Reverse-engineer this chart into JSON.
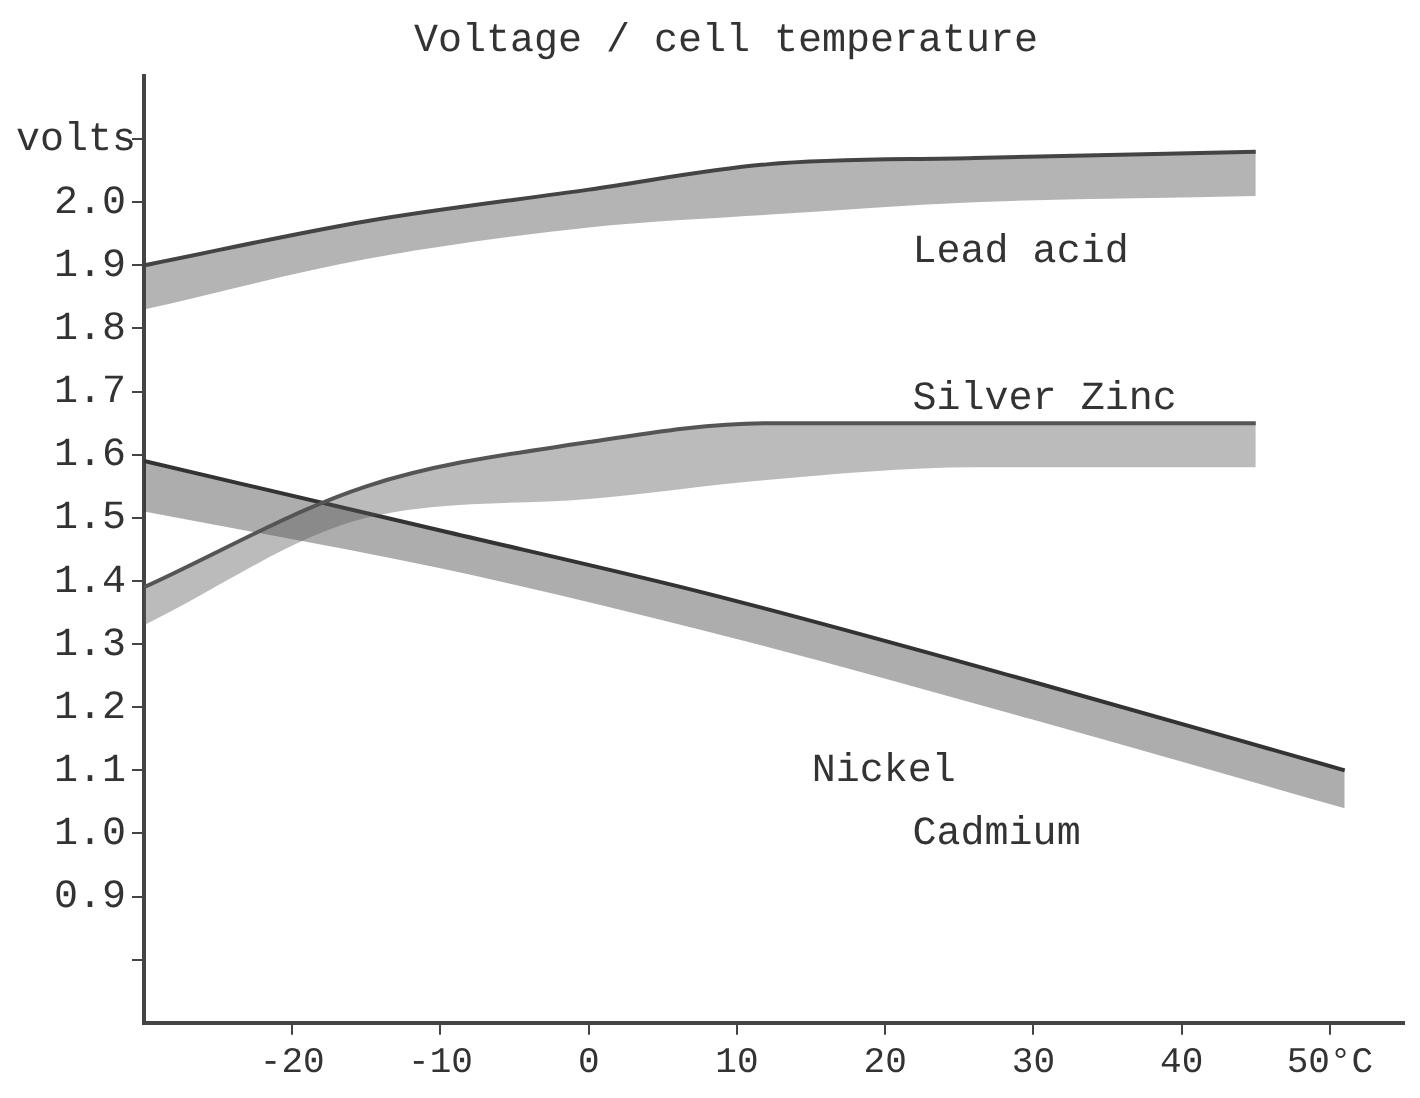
{
  "chart_data": {
    "type": "line",
    "title": "Voltage / cell temperature",
    "ylabel": "volts",
    "xlim": [
      -30,
      55
    ],
    "xticks": [
      -20,
      -10,
      0,
      10,
      20,
      30,
      40,
      {
        "value": 50,
        "label": "50°C"
      }
    ],
    "ylim": [
      0.7,
      2.2
    ],
    "yticks": [
      {
        "value": 0.8,
        "label": null
      },
      0.9,
      {
        "value": 1.0,
        "label": "1.0"
      },
      1.1,
      1.2,
      1.3,
      1.4,
      1.5,
      1.6,
      1.7,
      1.8,
      1.9,
      {
        "value": 2.0,
        "label": "2.0"
      },
      {
        "value": 2.1,
        "label": null
      }
    ],
    "marker": "none",
    "legend": false,
    "series": [
      {
        "color": "#444444",
        "x": [
          -30,
          -15,
          0,
          12,
          26,
          45
        ],
        "values": [
          1.9,
          1.97,
          2.02,
          2.06,
          2.07,
          2.08
        ],
        "lower": [
          1.83,
          1.91,
          1.96,
          1.98,
          2.0,
          2.01
        ],
        "upper": [
          1.9,
          1.97,
          2.02,
          2.06,
          2.07,
          2.08
        ]
      },
      {
        "color": "#555555",
        "x": [
          -30,
          -15,
          0,
          12,
          26,
          45
        ],
        "values": [
          1.39,
          1.55,
          1.62,
          1.65,
          1.65,
          1.65
        ],
        "lower": [
          1.33,
          1.5,
          1.53,
          1.56,
          1.58,
          1.58
        ],
        "upper": [
          1.39,
          1.55,
          1.62,
          1.65,
          1.65,
          1.65
        ]
      },
      {
        "color": "#333333",
        "x": [
          -30,
          -10,
          8,
          30,
          51
        ],
        "values": [
          1.59,
          1.48,
          1.38,
          1.24,
          1.1
        ],
        "lower": [
          1.51,
          1.42,
          1.32,
          1.18,
          1.04
        ],
        "upper": [
          1.59,
          1.48,
          1.38,
          1.24,
          1.1
        ]
      }
    ],
    "annotations": [
      "Lead acid",
      "Silver Zinc",
      "Nickel",
      "Cadmium"
    ]
  }
}
